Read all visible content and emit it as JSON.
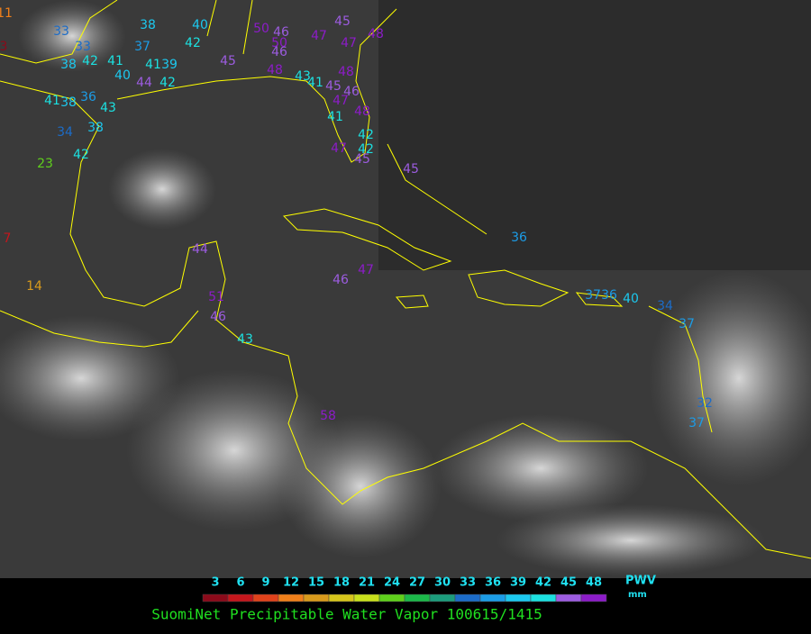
{
  "title": "SuomiNet Precipitable Water Vapor 100615/1415",
  "colorbar": {
    "unit_name": "PWV",
    "unit": "mm",
    "ticks": [
      3,
      6,
      9,
      12,
      15,
      18,
      21,
      24,
      27,
      30,
      33,
      36,
      39,
      42,
      45,
      48
    ],
    "colors": [
      "#8b0a1a",
      "#c4161c",
      "#e0421b",
      "#ef7f1a",
      "#d89a1c",
      "#d6c51c",
      "#c8e01c",
      "#5fd01c",
      "#1cb84a",
      "#1c9c7c",
      "#1c6cc8",
      "#1c9ce6",
      "#1cc8ee",
      "#1ce0e0",
      "#9c5ce0",
      "#8c1cc8"
    ]
  },
  "stations": [
    11,
    3,
    33,
    33,
    38,
    42,
    41,
    40,
    37,
    41,
    39,
    38,
    40,
    42,
    44,
    42,
    45,
    48,
    43,
    41,
    45,
    46,
    50,
    46,
    50,
    46,
    47,
    45,
    47,
    48,
    48,
    41,
    47,
    48,
    42,
    42,
    45,
    47,
    41,
    38,
    36,
    43,
    34,
    38,
    42,
    23,
    7,
    14,
    44,
    51,
    46,
    43,
    58,
    45,
    46,
    47,
    36,
    37,
    36,
    40,
    34,
    37,
    32,
    37
  ]
}
